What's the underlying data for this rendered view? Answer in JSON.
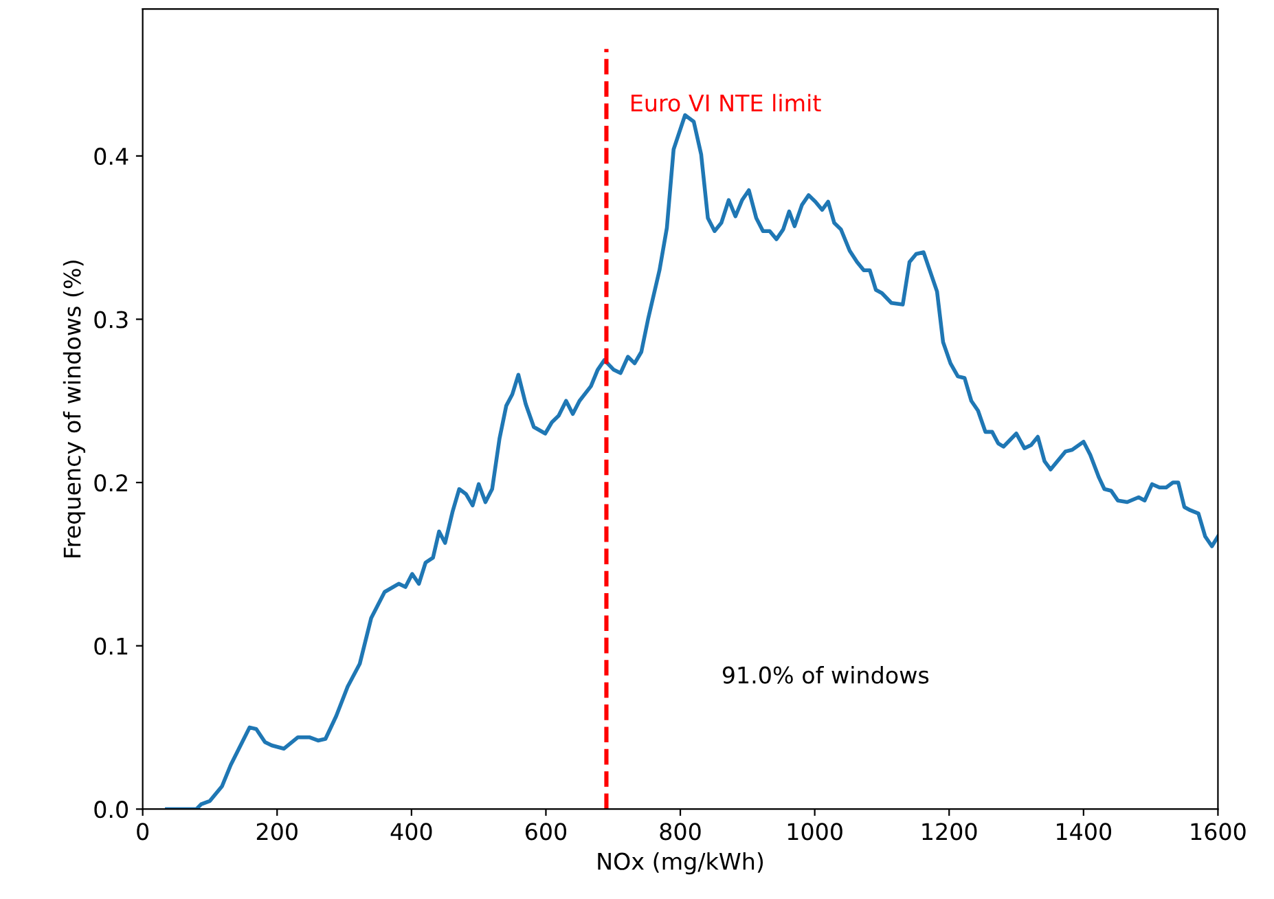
{
  "chart_data": {
    "type": "line",
    "xlabel": "NOx (mg/kWh)",
    "ylabel": "Frequency of windows (%)",
    "xlim": [
      0,
      1600
    ],
    "xticks": [
      0,
      200,
      400,
      600,
      800,
      1000,
      1200,
      1400,
      1600
    ],
    "ylim": [
      0,
      0.49
    ],
    "yticks": [
      {
        "value": 0,
        "label": "0.0"
      },
      0.1,
      0.2,
      0.3,
      0.4
    ],
    "grid": false,
    "legend": false,
    "series": [
      {
        "color": "#1f77b4",
        "x": [
          36,
          80,
          87,
          100,
          118,
          131,
          159,
          169,
          182,
          192,
          210,
          231,
          248,
          261,
          272,
          288,
          305,
          323,
          340,
          360,
          381,
          391,
          401,
          411,
          421,
          432,
          441,
          450,
          461,
          471,
          481,
          491,
          500,
          510,
          520,
          531,
          541,
          550,
          559,
          570,
          582,
          599,
          609,
          619,
          630,
          640,
          650,
          667,
          677,
          687,
          701,
          711,
          722,
          732,
          742,
          752,
          769,
          780,
          790,
          807,
          820,
          831,
          841,
          851,
          861,
          872,
          882,
          892,
          902,
          913,
          923,
          933,
          943,
          953,
          962,
          970,
          981,
          991,
          1001,
          1011,
          1020,
          1029,
          1039,
          1052,
          1063,
          1073,
          1082,
          1091,
          1100,
          1114,
          1131,
          1141,
          1151,
          1162,
          1182,
          1191,
          1202,
          1213,
          1223,
          1233,
          1243,
          1254,
          1264,
          1273,
          1281,
          1300,
          1312,
          1322,
          1332,
          1342,
          1351,
          1373,
          1383,
          1400,
          1410,
          1423,
          1431,
          1441,
          1451,
          1465,
          1482,
          1491,
          1502,
          1513,
          1523,
          1533,
          1541,
          1550,
          1559,
          1571,
          1581,
          1591,
          1600
        ],
        "values": [
          0.0,
          0.0,
          0.003,
          0.005,
          0.014,
          0.027,
          0.05,
          0.049,
          0.041,
          0.039,
          0.037,
          0.044,
          0.044,
          0.042,
          0.043,
          0.057,
          0.075,
          0.089,
          0.117,
          0.133,
          0.138,
          0.136,
          0.144,
          0.138,
          0.151,
          0.154,
          0.17,
          0.163,
          0.182,
          0.196,
          0.193,
          0.186,
          0.199,
          0.188,
          0.196,
          0.227,
          0.247,
          0.254,
          0.266,
          0.248,
          0.234,
          0.23,
          0.237,
          0.241,
          0.25,
          0.242,
          0.25,
          0.259,
          0.269,
          0.275,
          0.269,
          0.267,
          0.277,
          0.273,
          0.28,
          0.3,
          0.33,
          0.356,
          0.404,
          0.425,
          0.421,
          0.401,
          0.362,
          0.354,
          0.359,
          0.373,
          0.363,
          0.373,
          0.379,
          0.362,
          0.354,
          0.354,
          0.349,
          0.355,
          0.366,
          0.357,
          0.37,
          0.376,
          0.372,
          0.367,
          0.372,
          0.359,
          0.355,
          0.342,
          0.335,
          0.33,
          0.33,
          0.318,
          0.316,
          0.31,
          0.309,
          0.335,
          0.34,
          0.341,
          0.317,
          0.286,
          0.273,
          0.265,
          0.264,
          0.25,
          0.244,
          0.231,
          0.231,
          0.224,
          0.222,
          0.23,
          0.221,
          0.223,
          0.228,
          0.213,
          0.208,
          0.219,
          0.22,
          0.225,
          0.217,
          0.203,
          0.196,
          0.195,
          0.189,
          0.188,
          0.191,
          0.189,
          0.199,
          0.197,
          0.197,
          0.2,
          0.2,
          0.185,
          0.183,
          0.181,
          0.167,
          0.161,
          0.167
        ]
      }
    ],
    "ref_lines": [
      {
        "axis": "x",
        "value": 690,
        "label": "Euro VI NTE limit",
        "color": "#ff0000",
        "line_style": "dashed"
      }
    ],
    "annotations": [
      "91.0% of windows"
    ]
  }
}
